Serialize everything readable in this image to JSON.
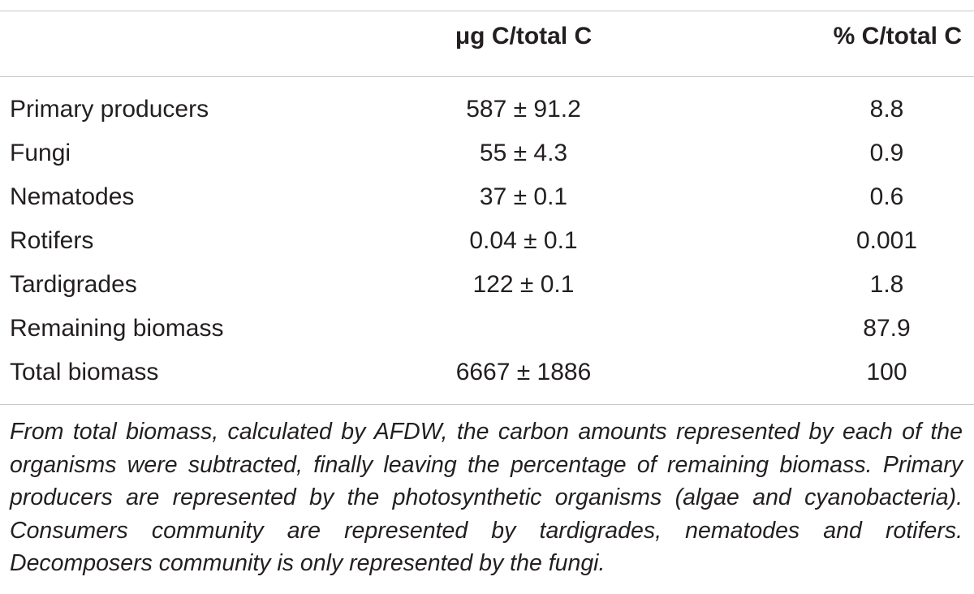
{
  "table": {
    "headers": {
      "label": "",
      "ug": "μg C/total C",
      "pct": "% C/total C"
    },
    "rows": [
      {
        "label": "Primary producers",
        "ug": "587 ± 91.2",
        "pct": "8.8"
      },
      {
        "label": "Fungi",
        "ug": "55 ± 4.3",
        "pct": "0.9"
      },
      {
        "label": "Nematodes",
        "ug": "37 ± 0.1",
        "pct": "0.6"
      },
      {
        "label": "Rotifers",
        "ug": "0.04 ± 0.1",
        "pct": "0.001"
      },
      {
        "label": "Tardigrades",
        "ug": "122 ± 0.1",
        "pct": "1.8"
      },
      {
        "label": "Remaining biomass",
        "ug": "",
        "pct": "87.9"
      },
      {
        "label": "Total biomass",
        "ug": "6667 ± 1886",
        "pct": "100"
      }
    ]
  },
  "caption": "From total biomass, calculated by AFDW, the carbon amounts represented by each of the organisms were subtracted, finally leaving the percentage of remaining biomass. Primary producers are represented by the photosynthetic organisms (algae and cyanobacteria). Consumers community are represented by tardigrades, nematodes and rotifers. Decomposers community is only represented by the fungi."
}
